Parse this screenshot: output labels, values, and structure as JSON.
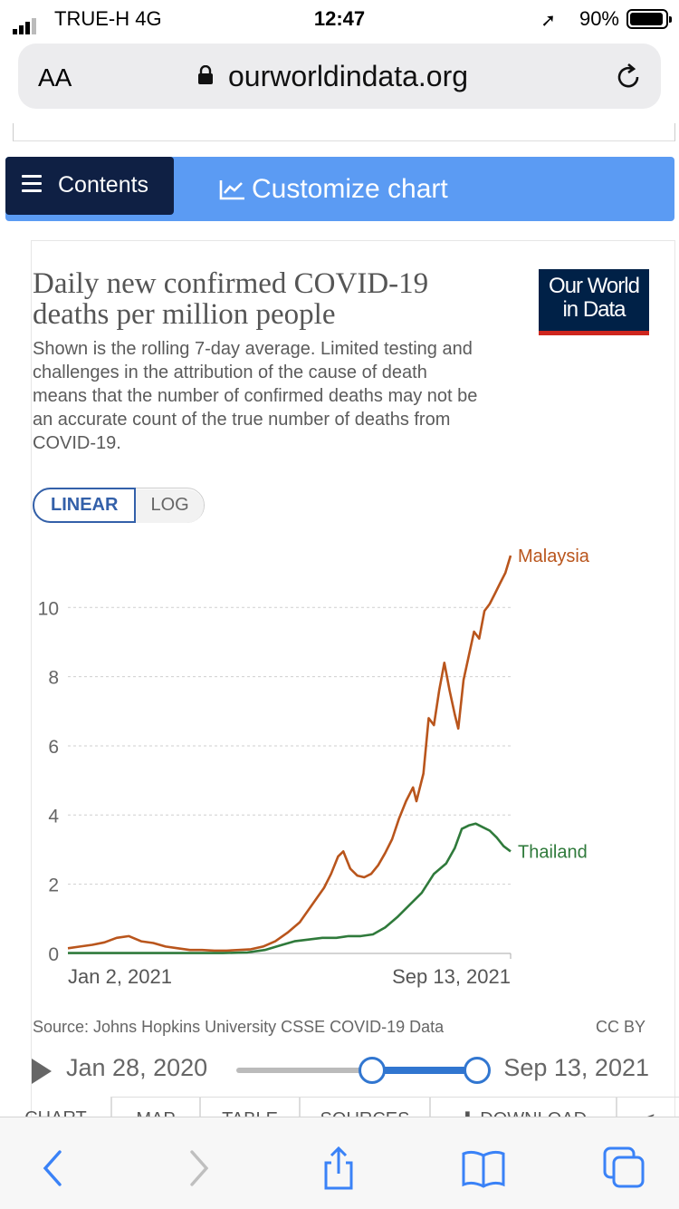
{
  "status": {
    "carrier": "TRUE-H  4G",
    "time": "12:47",
    "battery": "90%"
  },
  "browser": {
    "text_size_label": "AA",
    "url": "ourworldindata.org"
  },
  "nav": {
    "contents_label": "Contents",
    "customize_label": "Customize chart"
  },
  "card": {
    "title": "Daily new confirmed COVID-19 deaths per million people",
    "subtitle": "Shown is the rolling 7-day average. Limited testing and challenges in the attribution of the cause of death means that the number of confirmed deaths may not be an accurate count of the true number of deaths from COVID-19.",
    "logo_line1": "Our World",
    "logo_line2": "in Data",
    "scale_linear": "LINEAR",
    "scale_log": "LOG",
    "source": "Source: Johns Hopkins University CSSE COVID-19 Data",
    "license": "CC BY"
  },
  "timeline": {
    "start": "Jan 28, 2020",
    "end": "Sep 13, 2021",
    "range_start_fraction": 0.56,
    "range_end_fraction": 1.0
  },
  "tabs": [
    "CHART",
    "MAP",
    "TABLE",
    "SOURCES",
    "DOWNLOAD"
  ],
  "colors": {
    "malaysia": "#b9551c",
    "thailand": "#2f7a3b",
    "accent": "#3360a9",
    "navbar": "#5b9bf3",
    "navy": "#0f2044"
  },
  "chart_data": {
    "type": "line",
    "x_label_start": "Jan 2, 2021",
    "x_label_end": "Sep 13, 2021",
    "x_start": "2021-01-02",
    "x_end": "2021-09-13",
    "ylim": [
      0,
      11.5
    ],
    "yticks": [
      0,
      2,
      4,
      6,
      8,
      10
    ],
    "grid": "horizontal dashed",
    "series": [
      {
        "name": "Malaysia",
        "color": "#b9551c",
        "points": [
          [
            "2021-01-02",
            0.15
          ],
          [
            "2021-01-09",
            0.2
          ],
          [
            "2021-01-16",
            0.25
          ],
          [
            "2021-01-23",
            0.32
          ],
          [
            "2021-01-30",
            0.45
          ],
          [
            "2021-02-06",
            0.5
          ],
          [
            "2021-02-13",
            0.35
          ],
          [
            "2021-02-20",
            0.3
          ],
          [
            "2021-02-27",
            0.2
          ],
          [
            "2021-03-06",
            0.15
          ],
          [
            "2021-03-13",
            0.1
          ],
          [
            "2021-03-20",
            0.1
          ],
          [
            "2021-03-27",
            0.08
          ],
          [
            "2021-04-03",
            0.08
          ],
          [
            "2021-04-10",
            0.1
          ],
          [
            "2021-04-17",
            0.12
          ],
          [
            "2021-04-24",
            0.2
          ],
          [
            "2021-05-01",
            0.35
          ],
          [
            "2021-05-08",
            0.6
          ],
          [
            "2021-05-15",
            0.9
          ],
          [
            "2021-05-22",
            1.4
          ],
          [
            "2021-05-29",
            1.9
          ],
          [
            "2021-06-02",
            2.3
          ],
          [
            "2021-06-06",
            2.8
          ],
          [
            "2021-06-09",
            2.95
          ],
          [
            "2021-06-13",
            2.45
          ],
          [
            "2021-06-17",
            2.25
          ],
          [
            "2021-06-21",
            2.2
          ],
          [
            "2021-06-25",
            2.3
          ],
          [
            "2021-06-29",
            2.55
          ],
          [
            "2021-07-03",
            2.9
          ],
          [
            "2021-07-07",
            3.3
          ],
          [
            "2021-07-11",
            3.9
          ],
          [
            "2021-07-15",
            4.4
          ],
          [
            "2021-07-19",
            4.8
          ],
          [
            "2021-07-21",
            4.4
          ],
          [
            "2021-07-25",
            5.2
          ],
          [
            "2021-07-28",
            6.8
          ],
          [
            "2021-07-31",
            6.6
          ],
          [
            "2021-08-03",
            7.6
          ],
          [
            "2021-08-06",
            8.4
          ],
          [
            "2021-08-09",
            7.6
          ],
          [
            "2021-08-12",
            6.9
          ],
          [
            "2021-08-14",
            6.5
          ],
          [
            "2021-08-17",
            7.9
          ],
          [
            "2021-08-20",
            8.6
          ],
          [
            "2021-08-23",
            9.3
          ],
          [
            "2021-08-26",
            9.1
          ],
          [
            "2021-08-29",
            9.9
          ],
          [
            "2021-09-01",
            10.1
          ],
          [
            "2021-09-04",
            10.4
          ],
          [
            "2021-09-07",
            10.7
          ],
          [
            "2021-09-10",
            11.0
          ],
          [
            "2021-09-13",
            11.5
          ]
        ]
      },
      {
        "name": "Thailand",
        "color": "#2f7a3b",
        "points": [
          [
            "2021-01-02",
            0.01
          ],
          [
            "2021-02-01",
            0.01
          ],
          [
            "2021-03-01",
            0.01
          ],
          [
            "2021-04-01",
            0.01
          ],
          [
            "2021-04-15",
            0.03
          ],
          [
            "2021-04-25",
            0.1
          ],
          [
            "2021-05-05",
            0.25
          ],
          [
            "2021-05-12",
            0.35
          ],
          [
            "2021-05-20",
            0.4
          ],
          [
            "2021-05-28",
            0.45
          ],
          [
            "2021-06-05",
            0.45
          ],
          [
            "2021-06-12",
            0.5
          ],
          [
            "2021-06-19",
            0.5
          ],
          [
            "2021-06-26",
            0.55
          ],
          [
            "2021-07-03",
            0.75
          ],
          [
            "2021-07-10",
            1.05
          ],
          [
            "2021-07-17",
            1.4
          ],
          [
            "2021-07-24",
            1.75
          ],
          [
            "2021-07-31",
            2.3
          ],
          [
            "2021-08-07",
            2.6
          ],
          [
            "2021-08-12",
            3.05
          ],
          [
            "2021-08-16",
            3.6
          ],
          [
            "2021-08-20",
            3.7
          ],
          [
            "2021-08-24",
            3.75
          ],
          [
            "2021-08-28",
            3.65
          ],
          [
            "2021-09-01",
            3.55
          ],
          [
            "2021-09-05",
            3.35
          ],
          [
            "2021-09-09",
            3.1
          ],
          [
            "2021-09-13",
            2.95
          ]
        ]
      }
    ]
  }
}
